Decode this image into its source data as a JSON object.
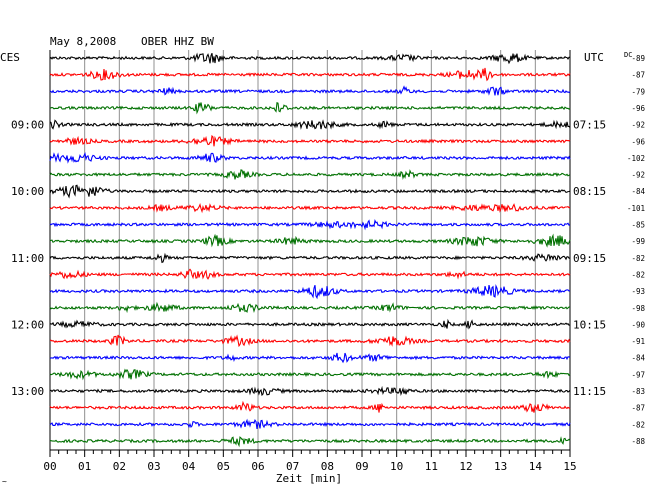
{
  "header": {
    "date": "May 8,2008",
    "station": "OBER HHZ BW",
    "left_tz": "CES",
    "right_tz": "UTC",
    "dc_label": "DC"
  },
  "footer": {
    "xlabel": "Zeit [min]",
    "corner_mark": "~"
  },
  "chart_data": {
    "type": "line",
    "title": "May 8,2008 OBER HHZ BW",
    "xlabel": "Zeit [min]",
    "xlim": [
      0,
      15
    ],
    "x_ticks": [
      "00",
      "01",
      "02",
      "03",
      "04",
      "05",
      "06",
      "07",
      "08",
      "09",
      "10",
      "11",
      "12",
      "13",
      "14",
      "15"
    ],
    "grid": true,
    "trace_count": 24,
    "trace_colors": [
      "#000000",
      "#ff0000",
      "#0000ff",
      "#007000"
    ],
    "left_time_labels": [
      {
        "trace": 4,
        "label": "09:00"
      },
      {
        "trace": 8,
        "label": "10:00"
      },
      {
        "trace": 12,
        "label": "11:00"
      },
      {
        "trace": 16,
        "label": "12:00"
      },
      {
        "trace": 20,
        "label": "13:00"
      }
    ],
    "right_time_labels": [
      {
        "trace": 4,
        "label": "07:15"
      },
      {
        "trace": 8,
        "label": "08:15"
      },
      {
        "trace": 12,
        "label": "09:15"
      },
      {
        "trace": 16,
        "label": "10:15"
      },
      {
        "trace": 20,
        "label": "11:15"
      }
    ],
    "dc_offsets": [
      "-89",
      "-87",
      "-79",
      "-96",
      "-92",
      "-96",
      "-102",
      "-92",
      "-84",
      "-101",
      "-85",
      "-99",
      "-82",
      "-82",
      "-93",
      "-98",
      "-90",
      "-91",
      "-84",
      "-97",
      "-83",
      "-87",
      "-82",
      "-88"
    ]
  }
}
